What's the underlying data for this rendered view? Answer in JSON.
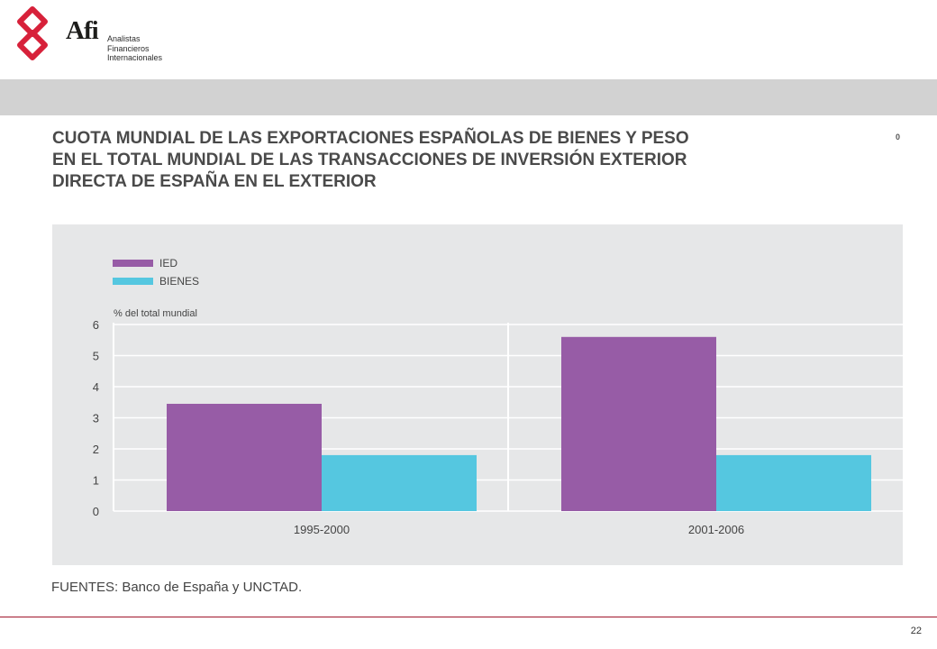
{
  "header": {
    "brand": "Afi",
    "brand_lines": [
      "Analistas",
      "Financieros",
      "Internacionales"
    ],
    "logo_icon": "afi-logo-icon",
    "logo_color": "#d7213a"
  },
  "slide": {
    "title_lines": [
      "CUOTA MUNDIAL DE LAS EXPORTACIONES ESPAÑOLAS DE BIENES Y PESO",
      "EN EL TOTAL MUNDIAL DE LAS TRANSACCIONES DE INVERSIÓN EXTERIOR",
      "DIRECTA DE ESPAÑA EN EL EXTERIOR"
    ],
    "corner_mark": "0",
    "source": "FUENTES: Banco de España y UNCTAD.",
    "page_number": "22"
  },
  "chart_data": {
    "type": "bar",
    "title": "",
    "xlabel": "",
    "ylabel": "% del total mundial",
    "categories": [
      "1995-2000",
      "2001-2006"
    ],
    "series": [
      {
        "name": "IED",
        "values": [
          3.45,
          5.6
        ],
        "color": "#975ca6"
      },
      {
        "name": "BIENES",
        "values": [
          1.8,
          1.8
        ],
        "color": "#55c7e0"
      }
    ],
    "ylim": [
      0,
      6
    ],
    "yticks": [
      0,
      1,
      2,
      3,
      4,
      5,
      6
    ],
    "grid": true,
    "legend": "top-left"
  }
}
